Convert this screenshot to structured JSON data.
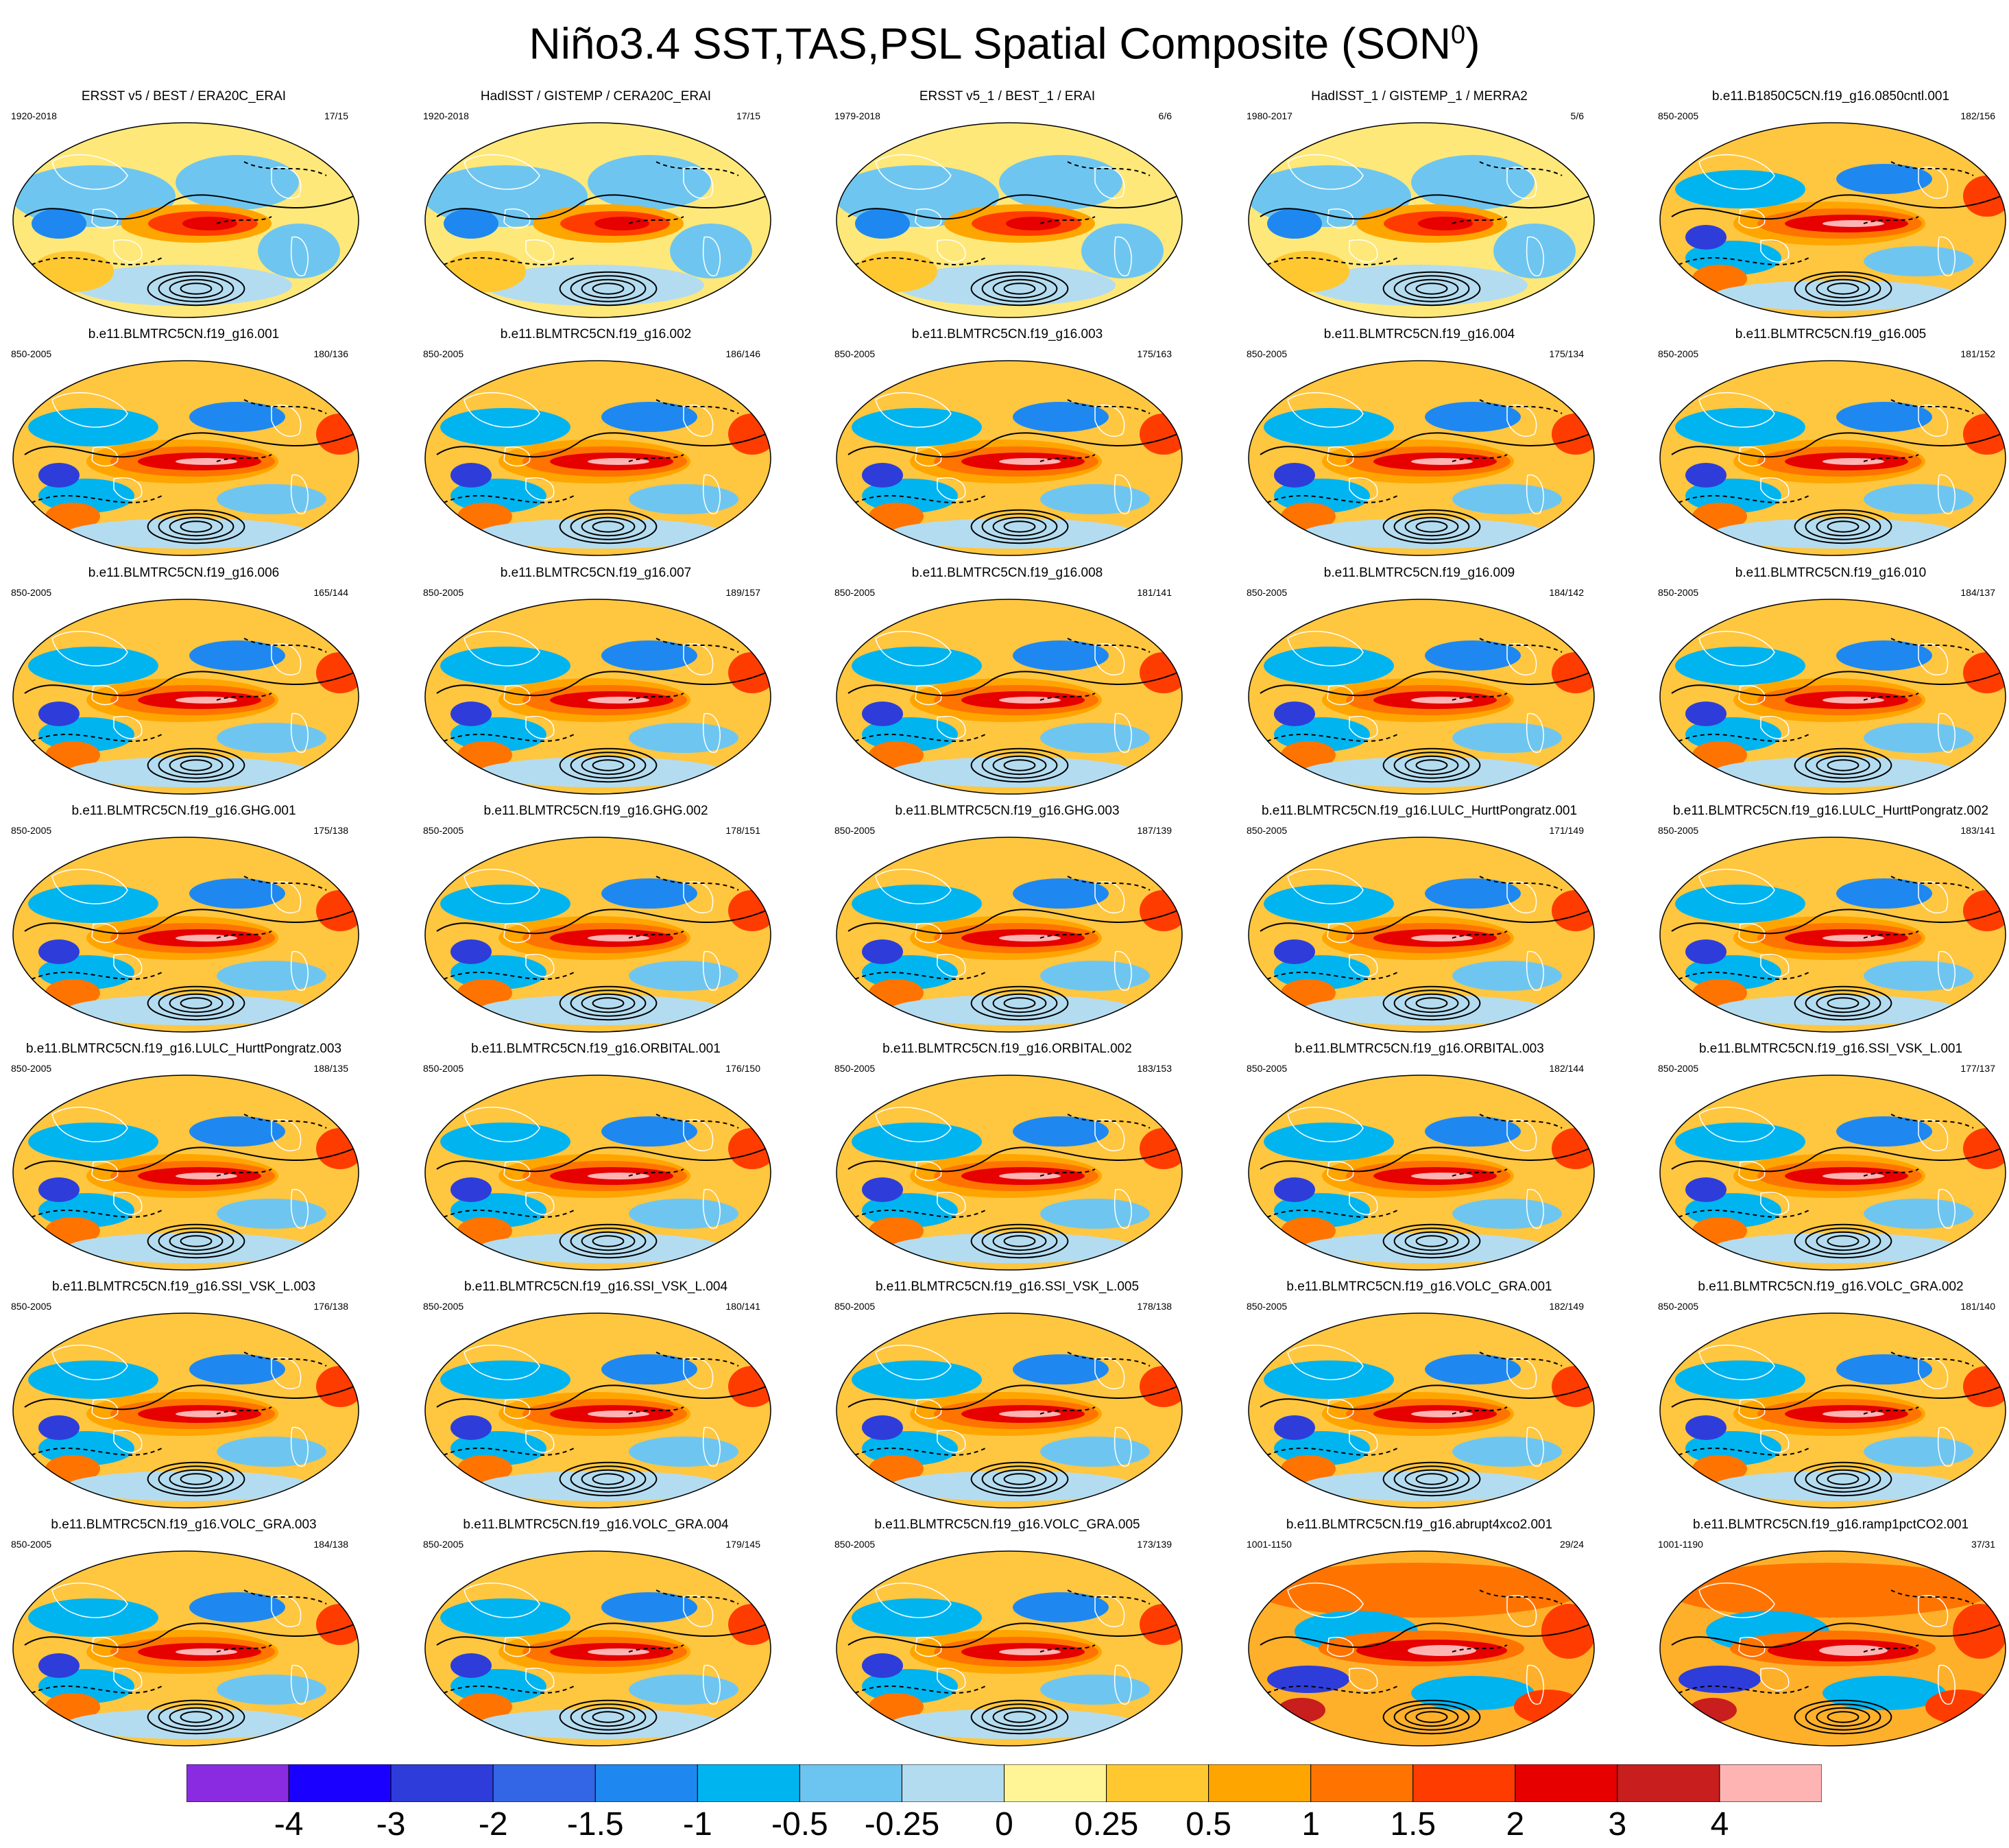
{
  "title": {
    "text": "Niño3.4 SST,TAS,PSL Spatial Composite (SON",
    "superscript": "0",
    "closing": ")"
  },
  "panels": [
    {
      "title": "ERSST v5 / BEST / ERA20C_ERAI",
      "period": "1920-2018",
      "count": "17/15",
      "style": "obs"
    },
    {
      "title": "HadISST / GISTEMP / CERA20C_ERAI",
      "period": "1920-2018",
      "count": "17/15",
      "style": "obs"
    },
    {
      "title": "ERSST v5_1 / BEST_1 / ERAI",
      "period": "1979-2018",
      "count": "6/6",
      "style": "obs"
    },
    {
      "title": "HadISST_1 / GISTEMP_1 / MERRA2",
      "period": "1980-2017",
      "count": "5/6",
      "style": "obs"
    },
    {
      "title": "b.e11.B1850C5CN.f19_g16.0850cntl.001",
      "period": "850-2005",
      "count": "182/156",
      "style": "model"
    },
    {
      "title": "b.e11.BLMTRC5CN.f19_g16.001",
      "period": "850-2005",
      "count": "180/136",
      "style": "model"
    },
    {
      "title": "b.e11.BLMTRC5CN.f19_g16.002",
      "period": "850-2005",
      "count": "186/146",
      "style": "model"
    },
    {
      "title": "b.e11.BLMTRC5CN.f19_g16.003",
      "period": "850-2005",
      "count": "175/163",
      "style": "model"
    },
    {
      "title": "b.e11.BLMTRC5CN.f19_g16.004",
      "period": "850-2005",
      "count": "175/134",
      "style": "model"
    },
    {
      "title": "b.e11.BLMTRC5CN.f19_g16.005",
      "period": "850-2005",
      "count": "181/152",
      "style": "model"
    },
    {
      "title": "b.e11.BLMTRC5CN.f19_g16.006",
      "period": "850-2005",
      "count": "165/144",
      "style": "model"
    },
    {
      "title": "b.e11.BLMTRC5CN.f19_g16.007",
      "period": "850-2005",
      "count": "189/157",
      "style": "model"
    },
    {
      "title": "b.e11.BLMTRC5CN.f19_g16.008",
      "period": "850-2005",
      "count": "181/141",
      "style": "model"
    },
    {
      "title": "b.e11.BLMTRC5CN.f19_g16.009",
      "period": "850-2005",
      "count": "184/142",
      "style": "model"
    },
    {
      "title": "b.e11.BLMTRC5CN.f19_g16.010",
      "period": "850-2005",
      "count": "184/137",
      "style": "model"
    },
    {
      "title": "b.e11.BLMTRC5CN.f19_g16.GHG.001",
      "period": "850-2005",
      "count": "175/138",
      "style": "model"
    },
    {
      "title": "b.e11.BLMTRC5CN.f19_g16.GHG.002",
      "period": "850-2005",
      "count": "178/151",
      "style": "model"
    },
    {
      "title": "b.e11.BLMTRC5CN.f19_g16.GHG.003",
      "period": "850-2005",
      "count": "187/139",
      "style": "model"
    },
    {
      "title": "b.e11.BLMTRC5CN.f19_g16.LULC_HurttPongratz.001",
      "period": "850-2005",
      "count": "171/149",
      "style": "model"
    },
    {
      "title": "b.e11.BLMTRC5CN.f19_g16.LULC_HurttPongratz.002",
      "period": "850-2005",
      "count": "183/141",
      "style": "model"
    },
    {
      "title": "b.e11.BLMTRC5CN.f19_g16.LULC_HurttPongratz.003",
      "period": "850-2005",
      "count": "188/135",
      "style": "model"
    },
    {
      "title": "b.e11.BLMTRC5CN.f19_g16.ORBITAL.001",
      "period": "850-2005",
      "count": "176/150",
      "style": "model"
    },
    {
      "title": "b.e11.BLMTRC5CN.f19_g16.ORBITAL.002",
      "period": "850-2005",
      "count": "183/153",
      "style": "model"
    },
    {
      "title": "b.e11.BLMTRC5CN.f19_g16.ORBITAL.003",
      "period": "850-2005",
      "count": "182/144",
      "style": "model"
    },
    {
      "title": "b.e11.BLMTRC5CN.f19_g16.SSI_VSK_L.001",
      "period": "850-2005",
      "count": "177/137",
      "style": "model"
    },
    {
      "title": "b.e11.BLMTRC5CN.f19_g16.SSI_VSK_L.003",
      "period": "850-2005",
      "count": "176/138",
      "style": "model"
    },
    {
      "title": "b.e11.BLMTRC5CN.f19_g16.SSI_VSK_L.004",
      "period": "850-2005",
      "count": "180/141",
      "style": "model"
    },
    {
      "title": "b.e11.BLMTRC5CN.f19_g16.SSI_VSK_L.005",
      "period": "850-2005",
      "count": "178/138",
      "style": "model"
    },
    {
      "title": "b.e11.BLMTRC5CN.f19_g16.VOLC_GRA.001",
      "period": "850-2005",
      "count": "182/149",
      "style": "model"
    },
    {
      "title": "b.e11.BLMTRC5CN.f19_g16.VOLC_GRA.002",
      "period": "850-2005",
      "count": "181/140",
      "style": "model"
    },
    {
      "title": "b.e11.BLMTRC5CN.f19_g16.VOLC_GRA.003",
      "period": "850-2005",
      "count": "184/138",
      "style": "model"
    },
    {
      "title": "b.e11.BLMTRC5CN.f19_g16.VOLC_GRA.004",
      "period": "850-2005",
      "count": "179/145",
      "style": "model"
    },
    {
      "title": "b.e11.BLMTRC5CN.f19_g16.VOLC_GRA.005",
      "period": "850-2005",
      "count": "173/139",
      "style": "model"
    },
    {
      "title": "b.e11.BLMTRC5CN.f19_g16.abrupt4xco2.001",
      "period": "1001-1150",
      "count": "29/24",
      "style": "warm"
    },
    {
      "title": "b.e11.BLMTRC5CN.f19_g16.ramp1pctCO2.001",
      "period": "1001-1190",
      "count": "37/31",
      "style": "warm"
    }
  ],
  "colorbar": {
    "colors": [
      "#8a2be2",
      "#1a00ff",
      "#2e3dd9",
      "#3366e6",
      "#1e88f0",
      "#00b4f0",
      "#6cc4f0",
      "#b4dcf0",
      "#fff596",
      "#ffc830",
      "#ffa500",
      "#ff7400",
      "#ff3c00",
      "#e60000",
      "#c81e1e",
      "#ffb4b4"
    ],
    "labels": [
      "-4",
      "-3",
      "-2",
      "-1.5",
      "-1",
      "-0.5",
      "-0.25",
      "0",
      "0.25",
      "0.5",
      "1",
      "1.5",
      "2",
      "3",
      "4"
    ]
  }
}
